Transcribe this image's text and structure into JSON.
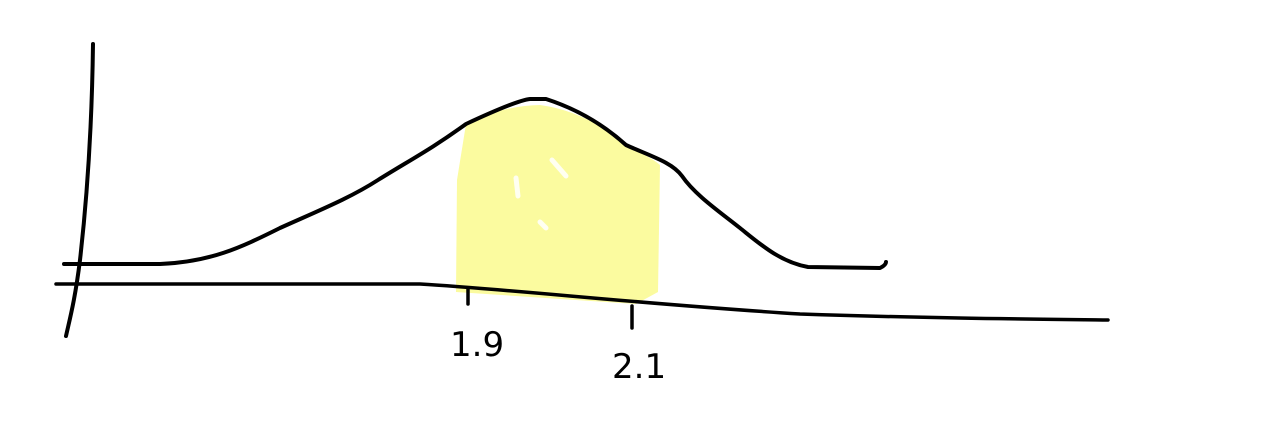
{
  "diagram": {
    "type": "normal-distribution-sketch",
    "ink_color": "#000000",
    "shade_color": "#fbfb9f",
    "shaded_interval": [
      1.9,
      2.1
    ],
    "tick_labels": [
      "1.9",
      "2.1"
    ]
  }
}
